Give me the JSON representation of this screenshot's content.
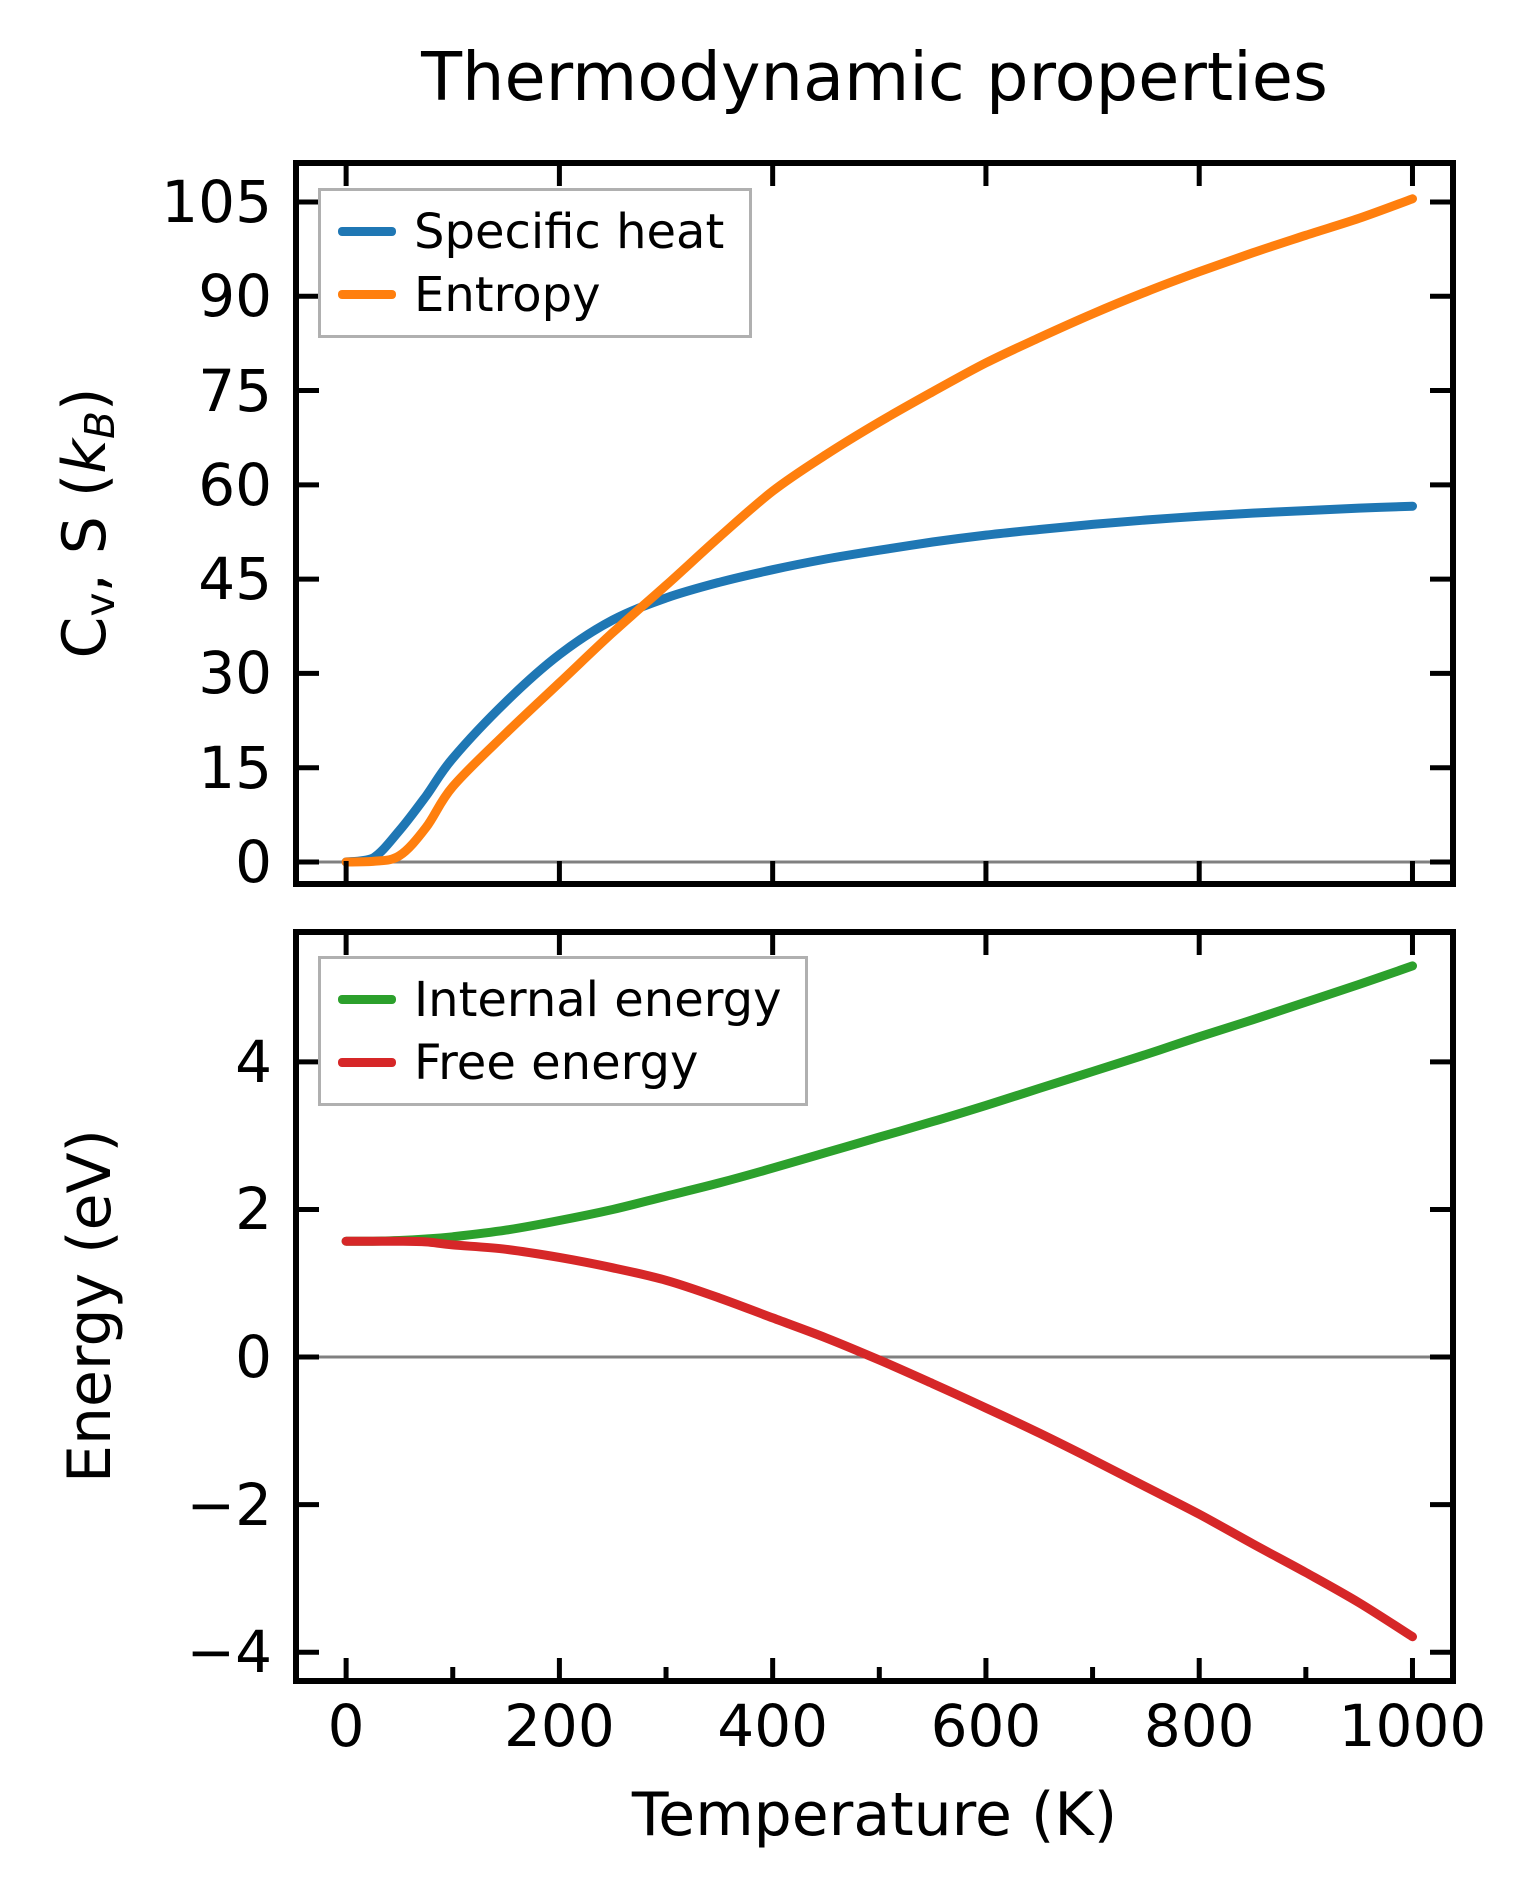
{
  "figure": {
    "title": "Thermodynamic properties",
    "background": "#ffffff",
    "axis_color": "#000000",
    "zero_line_color": "#808080",
    "legend_border_color": "#b0b0b0"
  },
  "xlabel": "Temperature (K)",
  "chart_data": [
    {
      "type": "line",
      "title": "Thermodynamic properties",
      "xlabel": "",
      "ylabel": "Cv, S (kB)",
      "ylabel_parts": {
        "pre": "C",
        "sub1": "v",
        "mid": ", S (",
        "kit": "k",
        "sub2": "B",
        "post": ")"
      },
      "xlim": [
        -47,
        1038
      ],
      "ylim": [
        -3.5,
        111.2
      ],
      "grid": false,
      "zero_line": true,
      "legend_position": "upper left",
      "x": [
        0,
        25,
        50,
        75,
        100,
        150,
        200,
        250,
        300,
        350,
        400,
        450,
        500,
        550,
        600,
        650,
        700,
        750,
        800,
        850,
        900,
        950,
        1000
      ],
      "series": [
        {
          "name": "Specific heat",
          "color": "#1f77b4",
          "values": [
            0,
            0.6,
            5,
            10.5,
            16.5,
            25.5,
            33,
            38.5,
            42,
            44.5,
            46.5,
            48.2,
            49.6,
            50.9,
            52,
            52.9,
            53.7,
            54.4,
            55,
            55.5,
            55.9,
            56.3,
            56.6
          ]
        },
        {
          "name": "Entropy",
          "color": "#ff7f0e",
          "values": [
            0,
            0.1,
            1,
            5.5,
            12,
            20.5,
            28.5,
            36.5,
            44,
            51.7,
            59,
            64.8,
            70,
            74.8,
            79.4,
            83.4,
            87.2,
            90.7,
            93.9,
            96.9,
            99.7,
            102.4,
            105.5
          ]
        }
      ],
      "x_ticks": {
        "major": [
          0,
          200,
          400,
          600,
          800,
          1000
        ],
        "minor": [],
        "labels": []
      },
      "y_ticks": {
        "major": [
          0,
          15,
          30,
          45,
          60,
          75,
          90,
          105
        ],
        "labels": [
          "0",
          "15",
          "30",
          "45",
          "60",
          "75",
          "90",
          "105"
        ]
      }
    },
    {
      "type": "line",
      "title": "",
      "xlabel": "Temperature (K)",
      "ylabel": "Energy (eV)",
      "xlim": [
        -47,
        1038
      ],
      "ylim": [
        -4.39,
        5.76
      ],
      "grid": false,
      "zero_line": true,
      "legend_position": "upper left",
      "x": [
        0,
        25,
        50,
        75,
        100,
        150,
        200,
        250,
        300,
        350,
        400,
        450,
        500,
        550,
        600,
        650,
        700,
        750,
        800,
        850,
        900,
        950,
        1000
      ],
      "series": [
        {
          "name": "Internal energy",
          "color": "#2ca02c",
          "values": [
            1.57,
            1.57,
            1.58,
            1.6,
            1.63,
            1.72,
            1.85,
            2,
            2.18,
            2.36,
            2.56,
            2.77,
            2.98,
            3.19,
            3.41,
            3.64,
            3.87,
            4.1,
            4.34,
            4.57,
            4.81,
            5.05,
            5.3
          ]
        },
        {
          "name": "Free energy",
          "color": "#d62728",
          "values": [
            1.57,
            1.57,
            1.57,
            1.56,
            1.52,
            1.46,
            1.35,
            1.21,
            1.04,
            0.8,
            0.53,
            0.26,
            -0.04,
            -0.36,
            -0.69,
            -1.03,
            -1.39,
            -1.76,
            -2.13,
            -2.53,
            -2.92,
            -3.33,
            -3.79
          ]
        }
      ],
      "x_ticks": {
        "major": [
          0,
          200,
          400,
          600,
          800,
          1000
        ],
        "minor": [
          100,
          300,
          500,
          700,
          900
        ],
        "labels": [
          "0",
          "200",
          "400",
          "600",
          "800",
          "1000"
        ]
      },
      "y_ticks": {
        "major": [
          -4,
          -2,
          0,
          2,
          4
        ],
        "labels": [
          "−4",
          "−2",
          "0",
          "2",
          "4"
        ]
      }
    }
  ]
}
